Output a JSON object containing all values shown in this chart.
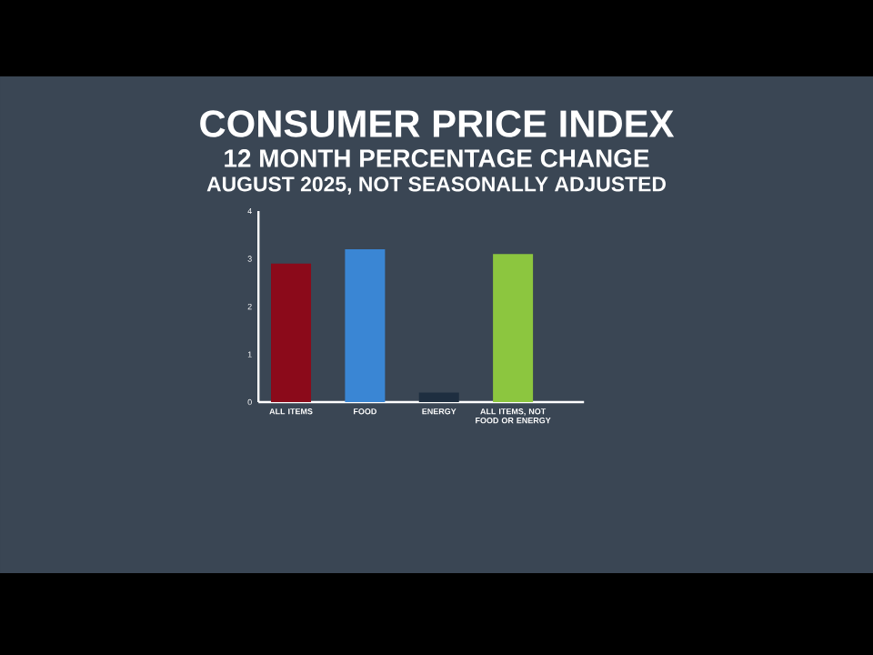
{
  "chart_data": {
    "type": "bar",
    "title": "CONSUMER PRICE INDEX",
    "subtitle": "12 MONTH PERCENTAGE CHANGE",
    "annotations": [
      "AUGUST 2025, NOT SEASONALLY ADJUSTED"
    ],
    "categories": [
      "ALL ITEMS",
      "FOOD",
      "ENERGY",
      "ALL ITEMS, NOT FOOD OR ENERGY"
    ],
    "values": [
      2.9,
      3.2,
      0.2,
      3.1
    ],
    "colors": [
      "#8b0a1a",
      "#3a86d4",
      "#1e2e40",
      "#8cc63f"
    ],
    "ylim": [
      0,
      4
    ],
    "yticks": [
      0,
      1,
      2,
      3,
      4
    ],
    "grid": false
  }
}
